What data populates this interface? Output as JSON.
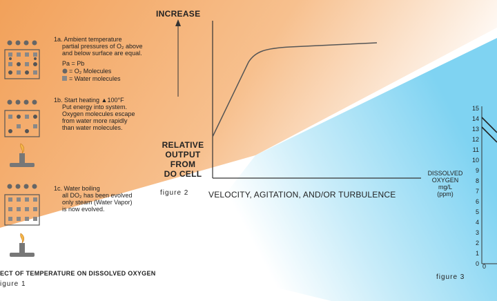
{
  "colors": {
    "orange": "#f2a15a",
    "blue": "#7fd3f2",
    "white": "#ffffff",
    "ink": "#222222"
  },
  "figure1": {
    "caption": "igure 1",
    "title": "ECT OF TEMPERATURE ON DISSOLVED OXYGEN",
    "step_1a": [
      "1a. Ambient temperature",
      "partial pressures of O₂ above",
      "and below surface are equal."
    ],
    "legend": [
      "Pa = Pb",
      "= O₂ Molecules",
      "= Water molecules"
    ],
    "step_1b": [
      "1b. Start heating ▲100°F",
      "Put energy into system.",
      "Oxygen molecules escape",
      "from water more rapidly",
      "than water molecules."
    ],
    "step_1c": [
      "1c. Water boiling",
      "all DO₂ has been evolved",
      "only steam (Water Vapor)",
      "is now evolved."
    ]
  },
  "figure2": {
    "caption": "figure 2",
    "y_top_label": "INCREASE",
    "y_label": [
      "RELATIVE",
      "OUTPUT",
      "FROM",
      "DO CELL"
    ],
    "x_label": "VELOCITY, AGITATION, AND/OR TURBULENCE"
  },
  "figure3": {
    "caption": "figure 3",
    "y_label": [
      "DISSOLVED",
      "OXYGEN",
      "mg/L",
      "(ppm)"
    ],
    "y_ticks": [
      "15",
      "14",
      "13",
      "12",
      "11",
      "10",
      "9",
      "8",
      "7",
      "6",
      "5",
      "4",
      "3",
      "2",
      "1",
      "0"
    ],
    "x_tick": "0"
  }
}
